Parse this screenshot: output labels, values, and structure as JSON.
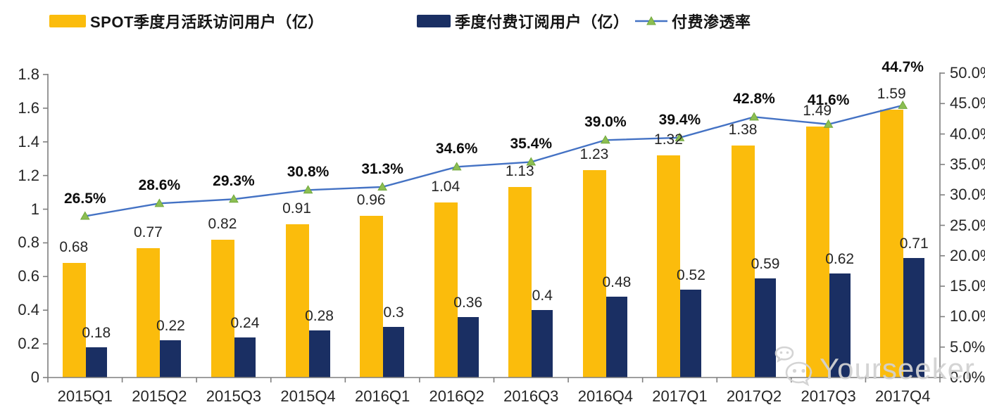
{
  "legend": {
    "items": [
      {
        "label": "SPOT季度月活跃访问用户（亿）",
        "color": "#FBBC0C",
        "type": "bar"
      },
      {
        "label": "季度付费订阅用户（亿）",
        "color": "#1A2F63",
        "type": "bar"
      },
      {
        "label": "付费渗透率",
        "color": "#4472C4",
        "marker_color": "#8CBE52",
        "type": "line"
      }
    ]
  },
  "watermark": {
    "text": "Yourseeker",
    "icon": "wechat-icon"
  },
  "colors": {
    "mau_bar": "#FBBC0C",
    "subs_bar": "#1A2F63",
    "penetration_line": "#4472C4",
    "marker_green": "#8CBE52",
    "marker_green_edge": "#70A83B",
    "axis_gray": "#7f7f7f",
    "text_dark": "#262626",
    "watermark_gray": "#d2d2d2"
  },
  "chart_data": {
    "type": "combo",
    "categories": [
      "2015Q1",
      "2015Q2",
      "2015Q3",
      "2015Q4",
      "2016Q1",
      "2016Q2",
      "2016Q3",
      "2016Q4",
      "2017Q1",
      "2017Q2",
      "2017Q3",
      "2017Q4"
    ],
    "series": [
      {
        "name": "SPOT季度月活跃访问用户（亿）",
        "type": "bar",
        "axis": "left",
        "color": "#FBBC0C",
        "values": [
          0.68,
          0.77,
          0.82,
          0.91,
          0.96,
          1.04,
          1.13,
          1.23,
          1.32,
          1.38,
          1.49,
          1.59
        ],
        "labels": [
          "0.68",
          "0.77",
          "0.82",
          "0.91",
          "0.96",
          "1.04",
          "1.13",
          "1.23",
          "1.32",
          "1.38",
          "1.49",
          "1.59"
        ]
      },
      {
        "name": "季度付费订阅用户（亿）",
        "type": "bar",
        "axis": "left",
        "color": "#1A2F63",
        "values": [
          0.18,
          0.22,
          0.24,
          0.28,
          0.3,
          0.36,
          0.4,
          0.48,
          0.52,
          0.59,
          0.62,
          0.71
        ],
        "labels": [
          "0.18",
          "0.22",
          "0.24",
          "0.28",
          "0.3",
          "0.36",
          "0.4",
          "0.48",
          "0.52",
          "0.59",
          "0.62",
          "0.71"
        ]
      },
      {
        "name": "付费渗透率",
        "type": "line",
        "axis": "right",
        "color": "#4472C4",
        "marker": "triangle",
        "marker_color": "#8CBE52",
        "values": [
          26.5,
          28.6,
          29.3,
          30.8,
          31.3,
          34.6,
          35.4,
          39.0,
          39.4,
          42.8,
          41.6,
          44.7
        ],
        "labels": [
          "26.5%",
          "28.6%",
          "29.3%",
          "30.8%",
          "31.3%",
          "34.6%",
          "35.4%",
          "39.0%",
          "39.4%",
          "42.8%",
          "41.6%",
          "44.7%"
        ]
      }
    ],
    "left_axis": {
      "min": 0,
      "max": 1.8,
      "ticks": [
        "1.8",
        "1.6",
        "1.4",
        "1.2",
        "1",
        "0.8",
        "0.6",
        "0.4",
        "0.2",
        "0"
      ],
      "tick_values": [
        1.8,
        1.6,
        1.4,
        1.2,
        1,
        0.8,
        0.6,
        0.4,
        0.2,
        0
      ]
    },
    "right_axis": {
      "min": 0,
      "max": 50,
      "ticks": [
        "50.0%",
        "45.0%",
        "40.0%",
        "35.0%",
        "30.0%",
        "25.0%",
        "20.0%",
        "15.0%",
        "10.0%",
        "5.0%",
        "0.0%"
      ],
      "tick_values": [
        50,
        45,
        40,
        35,
        30,
        25,
        20,
        15,
        10,
        5,
        0
      ]
    },
    "grid": false,
    "legend_position": "top",
    "title": ""
  }
}
